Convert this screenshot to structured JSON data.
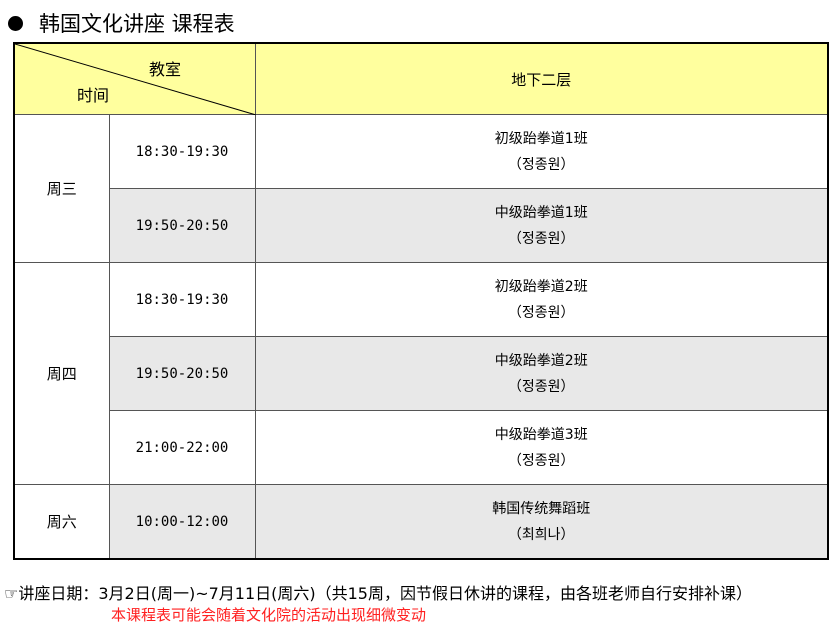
{
  "title": "韩国文化讲座 课程表",
  "header": {
    "room_label": "教室",
    "time_label": "时间",
    "room": "地下二层"
  },
  "rows": [
    {
      "day": "周三",
      "time": "18:30-19:30",
      "class": "初级跆拳道1班",
      "teacher": "（정종원）"
    },
    {
      "time": "19:50-20:50",
      "class": "中级跆拳道1班",
      "teacher": "（정종원）"
    },
    {
      "day": "周四",
      "time": "18:30-19:30",
      "class": "初级跆拳道2班",
      "teacher": "（정종원）"
    },
    {
      "time": "19:50-20:50",
      "class": "中级跆拳道2班",
      "teacher": "（정종원）"
    },
    {
      "time": "21:00-22:00",
      "class": "中级跆拳道3班",
      "teacher": "（정종원）"
    },
    {
      "day": "周六",
      "time": "10:00-12:00",
      "class": "韩国传统舞蹈班",
      "teacher": "（최희나）"
    }
  ],
  "note": "☞讲座日期：3月2日(周一)~7月11日(周六)（共15周，因节假日休讲的课程，由各班老师自行安排补课）",
  "warning": "本课程表可能会随着文化院的活动出现细微变动",
  "colors": {
    "header": "#ffff9e",
    "alt_row": "#e8e8e8",
    "warning": "#ff2020"
  }
}
